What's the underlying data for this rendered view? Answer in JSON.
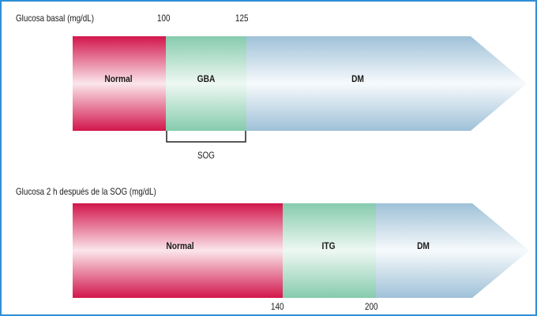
{
  "section1": {
    "title": "Glucosa basal (mg/dL)",
    "ticks": [
      "100",
      "125"
    ],
    "segments": [
      {
        "label": "Normal",
        "color": "#d81b50"
      },
      {
        "label": "GBA",
        "color": "#8fcfb3"
      },
      {
        "label": "DM",
        "color": "#a9c9dc"
      }
    ],
    "bracket_label": "SOG"
  },
  "section2": {
    "title": "Glucosa 2 h después de la SOG (mg/dL)",
    "ticks": [
      "140",
      "200"
    ],
    "segments": [
      {
        "label": "Normal",
        "color": "#d81b50"
      },
      {
        "label": "ITG",
        "color": "#8fcfb3"
      },
      {
        "label": "DM",
        "color": "#a9c9dc"
      }
    ]
  }
}
